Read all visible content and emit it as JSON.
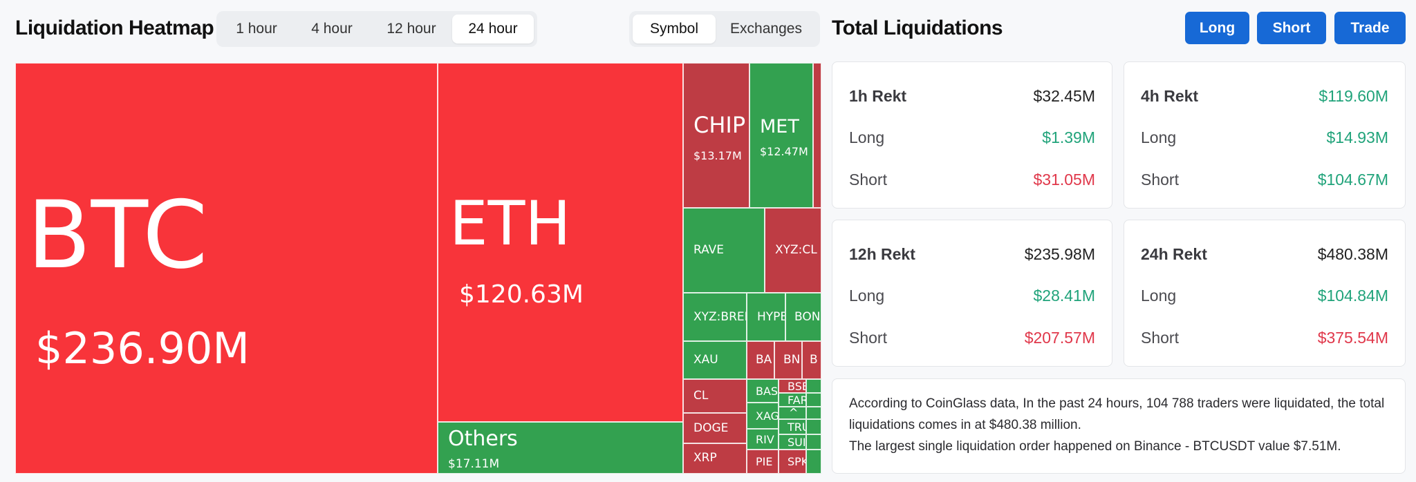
{
  "header": {
    "title": "Liquidation Heatmap"
  },
  "time_tabs": [
    {
      "label": "1 hour",
      "active": false
    },
    {
      "label": "4 hour",
      "active": false
    },
    {
      "label": "12 hour",
      "active": false
    },
    {
      "label": "24 hour",
      "active": true
    }
  ],
  "view_tabs": [
    {
      "label": "Symbol",
      "active": true
    },
    {
      "label": "Exchanges",
      "active": false
    }
  ],
  "heatmap": {
    "tiles": [
      {
        "symbol": "BTC",
        "value": "$236.90M"
      },
      {
        "symbol": "ETH",
        "value": "$120.63M"
      },
      {
        "symbol": "Others",
        "value": "$17.11M"
      },
      {
        "symbol": "CHIP",
        "value": "$13.17M"
      },
      {
        "symbol": "MET",
        "value": "$12.47M"
      },
      {
        "symbol": "RAVE",
        "value": ""
      },
      {
        "symbol": "XYZ:CL",
        "value": ""
      },
      {
        "symbol": "XYZ:BREN",
        "value": ""
      },
      {
        "symbol": "HYPE",
        "value": ""
      },
      {
        "symbol": "BON",
        "value": ""
      },
      {
        "symbol": "XAU",
        "value": ""
      },
      {
        "symbol": "BA",
        "value": ""
      },
      {
        "symbol": "BN",
        "value": ""
      },
      {
        "symbol": "B",
        "value": ""
      },
      {
        "symbol": "CL",
        "value": ""
      },
      {
        "symbol": "BAS",
        "value": ""
      },
      {
        "symbol": "BSE",
        "value": ""
      },
      {
        "symbol": "FAR",
        "value": ""
      },
      {
        "symbol": "DOGE",
        "value": ""
      },
      {
        "symbol": "XAG",
        "value": ""
      },
      {
        "symbol": "^",
        "value": ""
      },
      {
        "symbol": "TRU",
        "value": ""
      },
      {
        "symbol": "RIV",
        "value": ""
      },
      {
        "symbol": "SUI",
        "value": ""
      },
      {
        "symbol": "XRP",
        "value": ""
      },
      {
        "symbol": "PIE",
        "value": ""
      },
      {
        "symbol": "SPK",
        "value": ""
      }
    ]
  },
  "panel": {
    "title": "Total Liquidations",
    "buttons": [
      "Long",
      "Short",
      "Trade"
    ],
    "cards": [
      {
        "title": "1h Rekt",
        "total": "$32.45M",
        "long_label": "Long",
        "long": "$1.39M",
        "short_label": "Short",
        "short": "$31.05M",
        "short_color": "r"
      },
      {
        "title": "4h Rekt",
        "total": "$119.60M",
        "long_label": "Long",
        "long": "$14.93M",
        "short_label": "Short",
        "short": "$104.67M",
        "short_color": "g",
        "total_color": "g"
      },
      {
        "title": "12h Rekt",
        "total": "$235.98M",
        "long_label": "Long",
        "long": "$28.41M",
        "short_label": "Short",
        "short": "$207.57M",
        "short_color": "r"
      },
      {
        "title": "24h Rekt",
        "total": "$480.38M",
        "long_label": "Long",
        "long": "$104.84M",
        "short_label": "Short",
        "short": "$375.54M",
        "short_color": "r"
      }
    ],
    "summary_line1": "According to CoinGlass data, In the past 24 hours, 104 788 traders were liquidated, the total liquidations comes in at $480.38 million.",
    "summary_line2": "The largest single liquidation order happened on Binance - BTCUSDT value $7.51M."
  },
  "colors": {
    "accent": "#1769d6",
    "loss": "#f8343a",
    "loss_dark": "#be3c44",
    "gain": "#33a150",
    "positive_text": "#20a37a",
    "negative_text": "#e0374a"
  }
}
